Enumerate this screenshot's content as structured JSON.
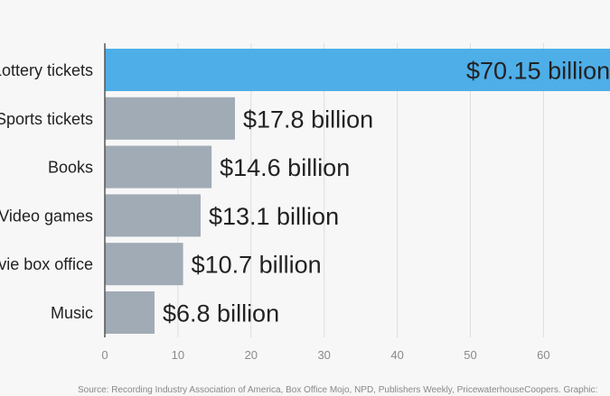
{
  "chart_data": {
    "type": "bar",
    "orientation": "horizontal",
    "categories": [
      "Lottery tickets",
      "Sports tickets",
      "Books",
      "Video games",
      "Movie box office",
      "Music"
    ],
    "values": [
      70.15,
      17.8,
      14.6,
      13.1,
      10.7,
      6.8
    ],
    "value_labels": [
      "$70.15 billion",
      "$17.8 billion",
      "$14.6 billion",
      "$13.1 billion",
      "$10.7 billion",
      "$6.8 billion"
    ],
    "x_ticks": [
      0,
      10,
      20,
      30,
      40,
      50,
      60
    ],
    "xlim": [
      0,
      69.5
    ],
    "grid": true,
    "colors": {
      "highlight": "#4eaee8",
      "bar": "#a1abb6",
      "grid": "#dddddd",
      "axis": "#555555"
    }
  },
  "source": "Source: Recording Industry Association of America, Box Office Mojo, NPD, Publishers Weekly, PricewaterhouseCoopers. Graphic:"
}
